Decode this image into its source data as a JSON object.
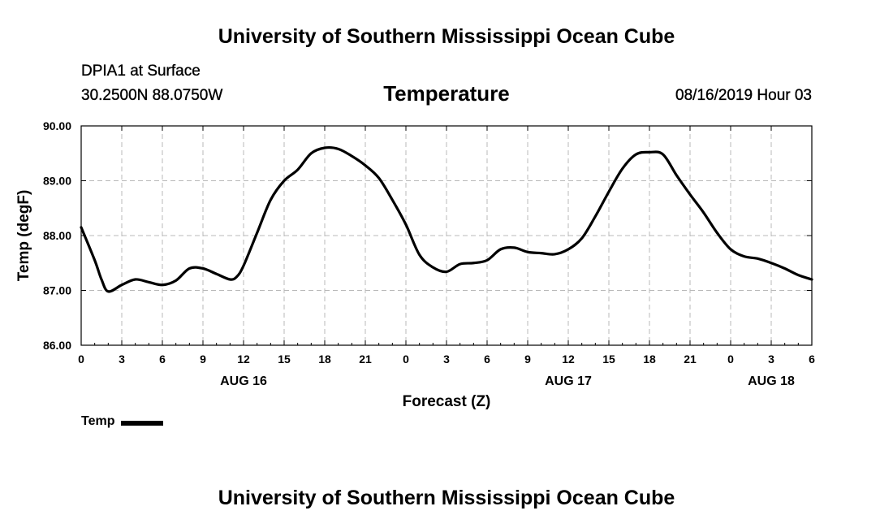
{
  "header": {
    "title": "University of Southern Mississippi Ocean Cube",
    "station": "DPIA1 at Surface",
    "coords": "30.2500N 88.0750W",
    "run_time": "08/16/2019 Hour 03"
  },
  "footer": {
    "title": "University of Southern Mississippi Ocean Cube"
  },
  "legend": {
    "label": "Temp"
  },
  "colors": {
    "line": "#000000",
    "grid": "#b8b8b8",
    "axis": "#000000"
  },
  "chart_data": {
    "type": "line",
    "title": "Temperature",
    "xlabel": "Forecast (Z)",
    "ylabel": "Temp (degF)",
    "ylim": [
      86.0,
      90.0
    ],
    "xlim": [
      0,
      54
    ],
    "grid": true,
    "legend_position": "bottom-left",
    "yticks": [
      86.0,
      87.0,
      88.0,
      89.0,
      90.0
    ],
    "ytick_labels": [
      "86.00",
      "87.00",
      "88.00",
      "89.00",
      "90.00"
    ],
    "xticks": [
      0,
      3,
      6,
      9,
      12,
      15,
      18,
      21,
      24,
      27,
      30,
      33,
      36,
      39,
      42,
      45,
      48,
      51,
      54
    ],
    "xtick_labels": [
      "0",
      "3",
      "6",
      "9",
      "12",
      "15",
      "18",
      "21",
      "0",
      "3",
      "6",
      "9",
      "12",
      "15",
      "18",
      "21",
      "0",
      "3",
      "6"
    ],
    "date_labels": [
      {
        "x": 12,
        "label": "AUG 16"
      },
      {
        "x": 36,
        "label": "AUG 17"
      },
      {
        "x": 51,
        "label": "AUG 18"
      }
    ],
    "series": [
      {
        "name": "Temp",
        "x": [
          0,
          1,
          1.5,
          2,
          3,
          4,
          5,
          6,
          7,
          8,
          9,
          10,
          11,
          11.5,
          12,
          13,
          14,
          15,
          16,
          17,
          18,
          19,
          20,
          21,
          22,
          23,
          24,
          25,
          26,
          27,
          28,
          29,
          30,
          31,
          32,
          33,
          34,
          35,
          36,
          37,
          38,
          39,
          40,
          41,
          42,
          43,
          44,
          45,
          46,
          47,
          48,
          49,
          50,
          51,
          52,
          53,
          54
        ],
        "values": [
          88.15,
          87.55,
          87.2,
          86.98,
          87.1,
          87.2,
          87.15,
          87.1,
          87.18,
          87.4,
          87.4,
          87.3,
          87.2,
          87.25,
          87.45,
          88.05,
          88.65,
          89.0,
          89.2,
          89.5,
          89.6,
          89.58,
          89.45,
          89.28,
          89.05,
          88.65,
          88.2,
          87.65,
          87.42,
          87.34,
          87.48,
          87.5,
          87.55,
          87.75,
          87.78,
          87.7,
          87.68,
          87.66,
          87.75,
          87.95,
          88.35,
          88.8,
          89.22,
          89.48,
          89.52,
          89.48,
          89.1,
          88.75,
          88.42,
          88.05,
          87.75,
          87.62,
          87.58,
          87.5,
          87.4,
          87.28,
          87.2
        ]
      }
    ]
  }
}
